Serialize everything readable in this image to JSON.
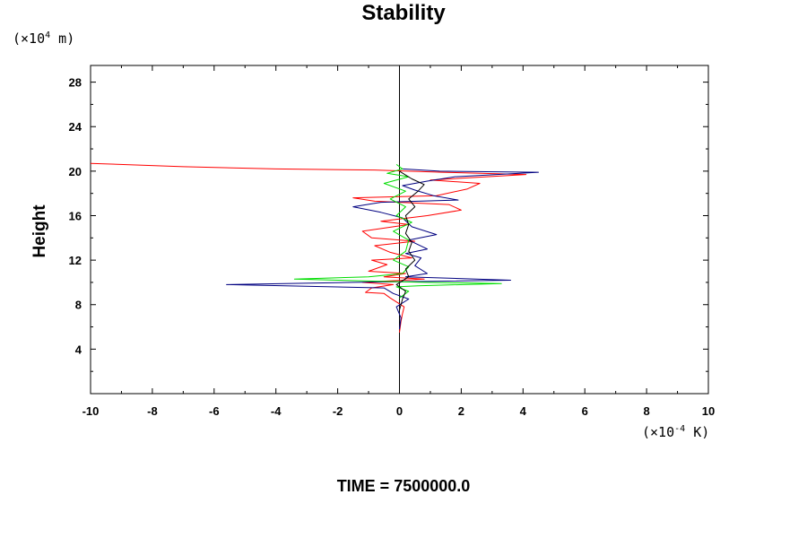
{
  "chart_data": {
    "type": "line",
    "title": "Stability",
    "ylabel": "Height",
    "xlabel": "",
    "x_unit": {
      "prefix": "(×10",
      "exp": "-4",
      "suffix": " K)"
    },
    "y_unit": {
      "prefix": "(×10",
      "exp": "4",
      "suffix": " m)"
    },
    "footer": "TIME = 7500000.0",
    "xlim": [
      -10,
      10
    ],
    "ylim": [
      0,
      29.5
    ],
    "x_ticks": [
      -10,
      -8,
      -6,
      -4,
      -2,
      0,
      2,
      4,
      6,
      8,
      10
    ],
    "x_tick_labels": [
      "-10",
      "-8",
      "-6",
      "-4",
      "-2",
      "0",
      "2",
      "4",
      "6",
      "8",
      "10"
    ],
    "y_ticks": [
      4,
      8,
      12,
      16,
      20,
      24,
      28
    ],
    "y_tick_labels": [
      "4",
      "8",
      "12",
      "16",
      "20",
      "24",
      "28"
    ],
    "series": [
      {
        "name": "red",
        "color": "#ff0000",
        "points": [
          [
            0,
            5.5
          ],
          [
            0.05,
            6.5
          ],
          [
            0.1,
            7.2
          ],
          [
            0.15,
            7.8
          ],
          [
            -0.3,
            8.6
          ],
          [
            -0.5,
            9.0
          ],
          [
            -1.1,
            9.1
          ],
          [
            -0.9,
            9.5
          ],
          [
            -0.2,
            9.8
          ],
          [
            -1.2,
            10.0
          ],
          [
            0.8,
            10.3
          ],
          [
            -0.5,
            10.5
          ],
          [
            0.2,
            10.8
          ],
          [
            -1.0,
            11.0
          ],
          [
            -0.4,
            11.6
          ],
          [
            -0.9,
            12.0
          ],
          [
            0.4,
            12.2
          ],
          [
            -0.3,
            12.7
          ],
          [
            -0.8,
            13.3
          ],
          [
            0.5,
            13.7
          ],
          [
            -0.9,
            14.0
          ],
          [
            -1.2,
            14.6
          ],
          [
            0.3,
            15.2
          ],
          [
            -0.6,
            15.5
          ],
          [
            0.9,
            16.0
          ],
          [
            2.0,
            16.5
          ],
          [
            1.6,
            17.0
          ],
          [
            -0.8,
            17.3
          ],
          [
            -1.5,
            17.6
          ],
          [
            1.2,
            17.8
          ],
          [
            2.2,
            18.4
          ],
          [
            2.6,
            18.9
          ],
          [
            1.0,
            19.2
          ],
          [
            4.1,
            19.7
          ],
          [
            1.4,
            19.9
          ],
          [
            -0.8,
            20.1
          ],
          [
            -4.0,
            20.2
          ],
          [
            -7.0,
            20.4
          ],
          [
            -10,
            20.7
          ]
        ]
      },
      {
        "name": "navy",
        "color": "#000080",
        "points": [
          [
            0,
            5.8
          ],
          [
            0.05,
            6.8
          ],
          [
            -0.1,
            7.8
          ],
          [
            0.3,
            8.5
          ],
          [
            -0.2,
            9.0
          ],
          [
            -0.5,
            9.5
          ],
          [
            -5.6,
            9.8
          ],
          [
            -1.5,
            10.0
          ],
          [
            3.6,
            10.2
          ],
          [
            0.2,
            10.5
          ],
          [
            0.9,
            10.8
          ],
          [
            0.5,
            11.5
          ],
          [
            0.7,
            12.2
          ],
          [
            0.2,
            12.6
          ],
          [
            0.9,
            13.0
          ],
          [
            0.3,
            13.8
          ],
          [
            1.2,
            14.3
          ],
          [
            0.4,
            15.0
          ],
          [
            0.1,
            15.8
          ],
          [
            -0.6,
            16.3
          ],
          [
            -1.5,
            16.8
          ],
          [
            -0.6,
            17.2
          ],
          [
            1.9,
            17.4
          ],
          [
            1.1,
            17.8
          ],
          [
            0.5,
            18.3
          ],
          [
            0.1,
            18.7
          ],
          [
            0.9,
            19.1
          ],
          [
            1.8,
            19.5
          ],
          [
            4.5,
            19.9
          ],
          [
            1.3,
            20.0
          ],
          [
            0.1,
            20.2
          ]
        ]
      },
      {
        "name": "green",
        "color": "#00dd00",
        "points": [
          [
            0,
            8.6
          ],
          [
            0.3,
            9.2
          ],
          [
            -0.1,
            9.6
          ],
          [
            0.6,
            9.7
          ],
          [
            3.3,
            9.9
          ],
          [
            0.8,
            10.0
          ],
          [
            -0.6,
            10.1
          ],
          [
            -3.4,
            10.3
          ],
          [
            -1.0,
            10.5
          ],
          [
            0.1,
            10.8
          ],
          [
            0.3,
            11.4
          ],
          [
            -0.2,
            12.0
          ],
          [
            0.2,
            12.8
          ],
          [
            0.3,
            13.8
          ],
          [
            -0.2,
            14.6
          ],
          [
            0.4,
            15.4
          ],
          [
            -0.1,
            16.0
          ],
          [
            0.2,
            16.8
          ],
          [
            -0.3,
            17.5
          ],
          [
            0.2,
            18.2
          ],
          [
            -0.5,
            18.9
          ],
          [
            0.3,
            19.5
          ],
          [
            -0.4,
            19.8
          ],
          [
            0.1,
            20.2
          ],
          [
            -0.1,
            20.6
          ]
        ]
      },
      {
        "name": "black",
        "color": "#000000",
        "points": [
          [
            0,
            7.5
          ],
          [
            0.1,
            8.5
          ],
          [
            0.2,
            9.2
          ],
          [
            -0.1,
            9.8
          ],
          [
            0.3,
            10.5
          ],
          [
            0.2,
            11.2
          ],
          [
            0.5,
            12.0
          ],
          [
            0.3,
            12.8
          ],
          [
            0.4,
            13.6
          ],
          [
            0.2,
            14.4
          ],
          [
            0.3,
            15.2
          ],
          [
            0.2,
            16.0
          ],
          [
            0.5,
            16.8
          ],
          [
            0.3,
            17.5
          ],
          [
            0.6,
            18.2
          ],
          [
            0.8,
            18.8
          ],
          [
            0.4,
            19.3
          ],
          [
            0.0,
            20.0
          ]
        ]
      }
    ]
  }
}
